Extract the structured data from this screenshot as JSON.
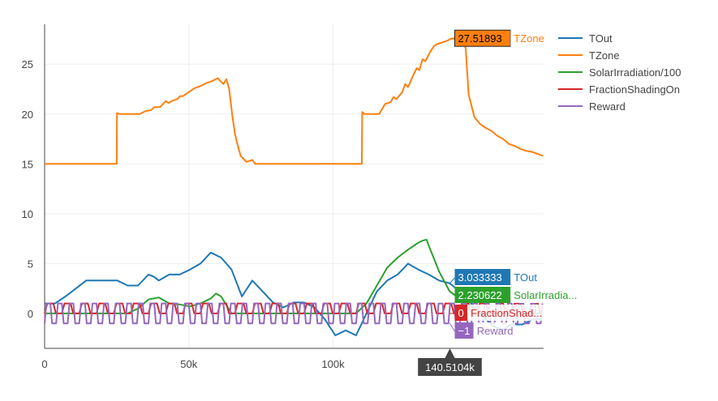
{
  "chart_data": {
    "type": "line",
    "title": "",
    "xlabel": "",
    "ylabel": "",
    "xlim": [
      0,
      173000
    ],
    "ylim": [
      -3.5,
      29
    ],
    "x_ticks": [
      0,
      50000,
      100000
    ],
    "x_tick_labels": [
      "0",
      "50k",
      "100k"
    ],
    "y_ticks": [
      0,
      5,
      10,
      15,
      20,
      25
    ],
    "y_tick_labels": [
      "0",
      "5",
      "10",
      "15",
      "20",
      "25"
    ],
    "grid": true,
    "legend_position": "top-right",
    "series": [
      {
        "name": "TOut",
        "color": "#1f77b4",
        "x": [
          0,
          3600,
          7200,
          10800,
          14400,
          18000,
          21600,
          25200,
          28800,
          32400,
          36000,
          37800,
          39600,
          43200,
          46800,
          50400,
          54000,
          57600,
          61200,
          64800,
          68400,
          72000,
          75600,
          79200,
          82800,
          86400,
          90000,
          93600,
          97200,
          100800,
          104400,
          108000,
          111600,
          115200,
          118800,
          122400,
          126000,
          129600,
          133200,
          136800,
          140400,
          144000,
          147600,
          151200,
          154800,
          158400,
          162000,
          165600,
          169200,
          172800
        ],
        "y": [
          1.0,
          1.0,
          1.7,
          2.5,
          3.3,
          3.3,
          3.3,
          3.3,
          2.8,
          2.8,
          3.9,
          3.7,
          3.3,
          3.9,
          3.9,
          4.4,
          5.0,
          6.1,
          5.6,
          4.4,
          1.7,
          3.3,
          2.2,
          1.1,
          0.6,
          1.1,
          1.1,
          0.6,
          -0.6,
          -2.2,
          -1.7,
          -2.2,
          0.0,
          2.2,
          3.3,
          3.9,
          5.0,
          4.4,
          3.9,
          3.3,
          3.03,
          2.2,
          1.1,
          0.0,
          -1.1,
          -1.7,
          -1.1,
          -1.1,
          -0.6,
          -0.6
        ]
      },
      {
        "name": "TZone",
        "color": "#ff7f0e",
        "x": [
          0,
          25000,
          25100,
          26000,
          33000,
          35000,
          37000,
          38000,
          40000,
          41000,
          42000,
          43000,
          44000,
          46000,
          47000,
          48000,
          50000,
          52000,
          54000,
          56000,
          58000,
          60000,
          61000,
          62000,
          63000,
          64000,
          65000,
          66000,
          67000,
          68000,
          70000,
          72000,
          73000,
          74000,
          110000,
          110100,
          111000,
          116000,
          118000,
          120000,
          121000,
          122000,
          124000,
          125000,
          126000,
          128000,
          129000,
          130000,
          131000,
          132000,
          134000,
          135000,
          136000,
          138000,
          140000,
          140510,
          142000,
          144000,
          145000,
          146000,
          147000,
          149000,
          151000,
          153000,
          155000,
          157000,
          159000,
          161000,
          163000,
          165000,
          167000,
          169000,
          171000,
          172800
        ],
        "y": [
          15.0,
          15.0,
          20.1,
          20.0,
          20.0,
          20.3,
          20.4,
          20.7,
          20.7,
          21.0,
          21.3,
          21.1,
          21.3,
          21.5,
          21.8,
          21.8,
          22.2,
          22.6,
          22.8,
          23.1,
          23.3,
          23.6,
          23.3,
          23.0,
          23.5,
          22.5,
          20.0,
          18.0,
          16.8,
          15.8,
          15.2,
          15.4,
          15.0,
          15.0,
          15.0,
          20.2,
          20.0,
          20.0,
          21.0,
          21.2,
          21.7,
          21.5,
          22.2,
          23.0,
          22.7,
          24.0,
          24.6,
          24.4,
          25.5,
          25.3,
          26.4,
          26.8,
          27.0,
          27.2,
          27.4,
          27.52,
          27.6,
          27.6,
          27.4,
          26.6,
          22.0,
          19.7,
          19.0,
          18.6,
          18.3,
          17.8,
          17.5,
          17.0,
          16.8,
          16.5,
          16.3,
          16.2,
          16.0,
          15.8
        ]
      },
      {
        "name": "SolarIrradiation/100",
        "color": "#2ca02c",
        "x": [
          0,
          28800,
          32400,
          36000,
          39600,
          43200,
          46800,
          50400,
          54000,
          57600,
          59400,
          61200,
          64800,
          108000,
          111600,
          115200,
          118800,
          122400,
          126000,
          129600,
          131000,
          132400,
          133200,
          136800,
          140400,
          144000,
          147600,
          151200,
          172800
        ],
        "y": [
          0.0,
          0.0,
          0.5,
          1.4,
          1.6,
          1.0,
          0.9,
          0.7,
          1.0,
          1.5,
          2.0,
          1.7,
          0.0,
          0.0,
          1.0,
          2.8,
          4.6,
          5.6,
          6.4,
          7.1,
          7.3,
          7.4,
          6.8,
          4.2,
          2.23,
          1.5,
          0.8,
          0.0,
          0.0
        ]
      },
      {
        "name": "FractionShadingOn",
        "color": "#d62728",
        "pattern": "toggle",
        "low": 0,
        "high": 1,
        "period": 3000,
        "xlim": [
          0,
          172800
        ]
      },
      {
        "name": "Reward",
        "color": "#9467bd",
        "pattern": "toggle",
        "low": -1,
        "high": 1,
        "period": 2000,
        "xlim": [
          0,
          172800
        ]
      }
    ],
    "hover": {
      "x_label": "140.5104k",
      "items": [
        {
          "series": "TZone",
          "value": "27.51893",
          "name": "TZone",
          "y": 27.52,
          "color": "#ff7f0e"
        },
        {
          "series": "TOut",
          "value": "3.033333",
          "name": "TOut",
          "y": 3.03,
          "color": "#1f77b4"
        },
        {
          "series": "SolarIrradiation/100",
          "value": "2.230622",
          "name": "SolarIrradia...",
          "y": 2.23,
          "color": "#2ca02c"
        },
        {
          "series": "FractionShadingOn",
          "value": "0",
          "name": "FractionShad...",
          "y": 0,
          "color": "#d62728"
        },
        {
          "series": "Reward",
          "value": "−1",
          "name": "Reward",
          "y": -1,
          "color": "#9467bd"
        }
      ]
    }
  }
}
